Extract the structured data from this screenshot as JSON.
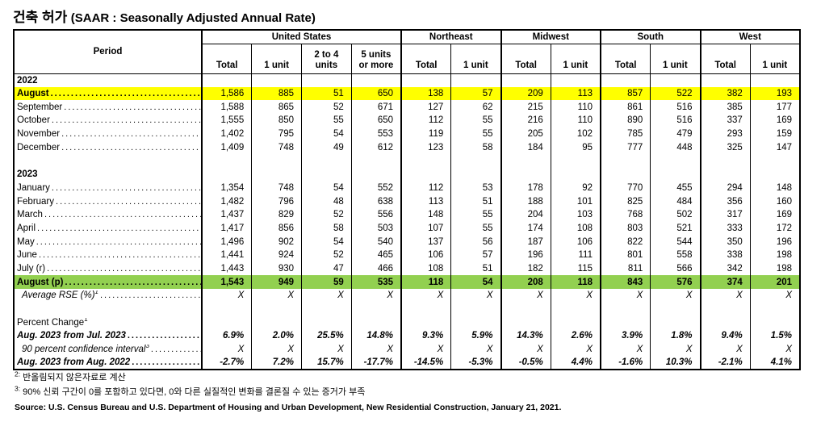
{
  "title": {
    "korean": "건축 허가",
    "english": "(SAAR : Seasonally Adjusted Annual Rate)"
  },
  "colors": {
    "highlight_yellow": "#FFFF00",
    "highlight_green": "#92D050"
  },
  "table": {
    "period_header": "Period",
    "groups": [
      {
        "label": "United States",
        "columns": [
          [
            "Total"
          ],
          [
            "1 unit"
          ],
          [
            "2 to 4",
            "units"
          ],
          [
            "5 units",
            "or more"
          ]
        ]
      },
      {
        "label": "Northeast",
        "columns": [
          [
            "Total"
          ],
          [
            "1 unit"
          ]
        ]
      },
      {
        "label": "Midwest",
        "columns": [
          [
            "Total"
          ],
          [
            "1 unit"
          ]
        ]
      },
      {
        "label": "South",
        "columns": [
          [
            "Total"
          ],
          [
            "1 unit"
          ]
        ]
      },
      {
        "label": "West",
        "columns": [
          [
            "Total"
          ],
          [
            "1 unit"
          ]
        ]
      }
    ],
    "rows": [
      {
        "type": "year",
        "label": "2022"
      },
      {
        "type": "month",
        "label": "August",
        "highlight": "yellow",
        "bold_label": true,
        "values": [
          "1,586",
          "885",
          "51",
          "650",
          "138",
          "57",
          "209",
          "113",
          "857",
          "522",
          "382",
          "193"
        ]
      },
      {
        "type": "month",
        "label": "September",
        "values": [
          "1,588",
          "865",
          "52",
          "671",
          "127",
          "62",
          "215",
          "110",
          "861",
          "516",
          "385",
          "177"
        ]
      },
      {
        "type": "month",
        "label": "October",
        "values": [
          "1,555",
          "850",
          "55",
          "650",
          "112",
          "55",
          "216",
          "110",
          "890",
          "516",
          "337",
          "169"
        ]
      },
      {
        "type": "month",
        "label": "November",
        "values": [
          "1,402",
          "795",
          "54",
          "553",
          "119",
          "55",
          "205",
          "102",
          "785",
          "479",
          "293",
          "159"
        ]
      },
      {
        "type": "month",
        "label": "December",
        "values": [
          "1,409",
          "748",
          "49",
          "612",
          "123",
          "58",
          "184",
          "95",
          "777",
          "448",
          "325",
          "147"
        ]
      },
      {
        "type": "blank"
      },
      {
        "type": "year",
        "label": "2023"
      },
      {
        "type": "month",
        "label": "January",
        "values": [
          "1,354",
          "748",
          "54",
          "552",
          "112",
          "53",
          "178",
          "92",
          "770",
          "455",
          "294",
          "148"
        ]
      },
      {
        "type": "month",
        "label": "February",
        "values": [
          "1,482",
          "796",
          "48",
          "638",
          "113",
          "51",
          "188",
          "101",
          "825",
          "484",
          "356",
          "160"
        ]
      },
      {
        "type": "month",
        "label": "March",
        "values": [
          "1,437",
          "829",
          "52",
          "556",
          "148",
          "55",
          "204",
          "103",
          "768",
          "502",
          "317",
          "169"
        ]
      },
      {
        "type": "month",
        "label": "April",
        "values": [
          "1,417",
          "856",
          "58",
          "503",
          "107",
          "55",
          "174",
          "108",
          "803",
          "521",
          "333",
          "172"
        ]
      },
      {
        "type": "month",
        "label": "May",
        "values": [
          "1,496",
          "902",
          "54",
          "540",
          "137",
          "56",
          "187",
          "106",
          "822",
          "544",
          "350",
          "196"
        ]
      },
      {
        "type": "month",
        "label": "June",
        "values": [
          "1,441",
          "924",
          "52",
          "465",
          "106",
          "57",
          "196",
          "111",
          "801",
          "558",
          "338",
          "198"
        ]
      },
      {
        "type": "month",
        "label": "July (r)",
        "values": [
          "1,443",
          "930",
          "47",
          "466",
          "108",
          "51",
          "182",
          "115",
          "811",
          "566",
          "342",
          "198"
        ]
      },
      {
        "type": "month",
        "label": "August (p)",
        "highlight": "green",
        "bold_label": true,
        "bold_values": true,
        "values": [
          "1,543",
          "949",
          "59",
          "535",
          "118",
          "54",
          "208",
          "118",
          "843",
          "576",
          "374",
          "201"
        ]
      },
      {
        "type": "stat",
        "label": "Average RSE (%)",
        "sup": "1",
        "italic": true,
        "indent": true,
        "values": [
          "X",
          "X",
          "X",
          "X",
          "X",
          "X",
          "X",
          "X",
          "X",
          "X",
          "X",
          "X"
        ]
      },
      {
        "type": "blank"
      },
      {
        "type": "label",
        "label": "Percent Change",
        "sup": "1"
      },
      {
        "type": "stat",
        "label": "Aug. 2023 from Jul. 2023",
        "italic": true,
        "bold_label": true,
        "bold_values": true,
        "values": [
          "6.9%",
          "2.0%",
          "25.5%",
          "14.8%",
          "9.3%",
          "5.9%",
          "14.3%",
          "2.6%",
          "3.9%",
          "1.8%",
          "9.4%",
          "1.5%"
        ]
      },
      {
        "type": "stat",
        "label": "90 percent confidence interval",
        "sup": "3",
        "italic": true,
        "indent": true,
        "values": [
          "X",
          "X",
          "X",
          "X",
          "X",
          "X",
          "X",
          "X",
          "X",
          "X",
          "X",
          "X"
        ]
      },
      {
        "type": "stat",
        "label": "Aug. 2023 from Aug. 2022",
        "italic": true,
        "bold_label": true,
        "bold_values": true,
        "values": [
          "-2.7%",
          "7.2%",
          "15.7%",
          "-17.7%",
          "-14.5%",
          "-5.3%",
          "-0.5%",
          "4.4%",
          "-1.6%",
          "10.3%",
          "-2.1%",
          "4.1%"
        ]
      }
    ]
  },
  "footnotes": [
    {
      "marker": "2:",
      "text": "반올림되지 않은자료로 계산"
    },
    {
      "marker": "3:",
      "text": "90% 신뢰 구간이 0를 포함하고 있다면, 0와 다른 실질적인 변화를 결론질 수 있는 증거가 부족"
    }
  ],
  "source": "Source: U.S. Census Bureau and U.S. Department of Housing and Urban Development, New Residential Construction, January 21, 2021."
}
